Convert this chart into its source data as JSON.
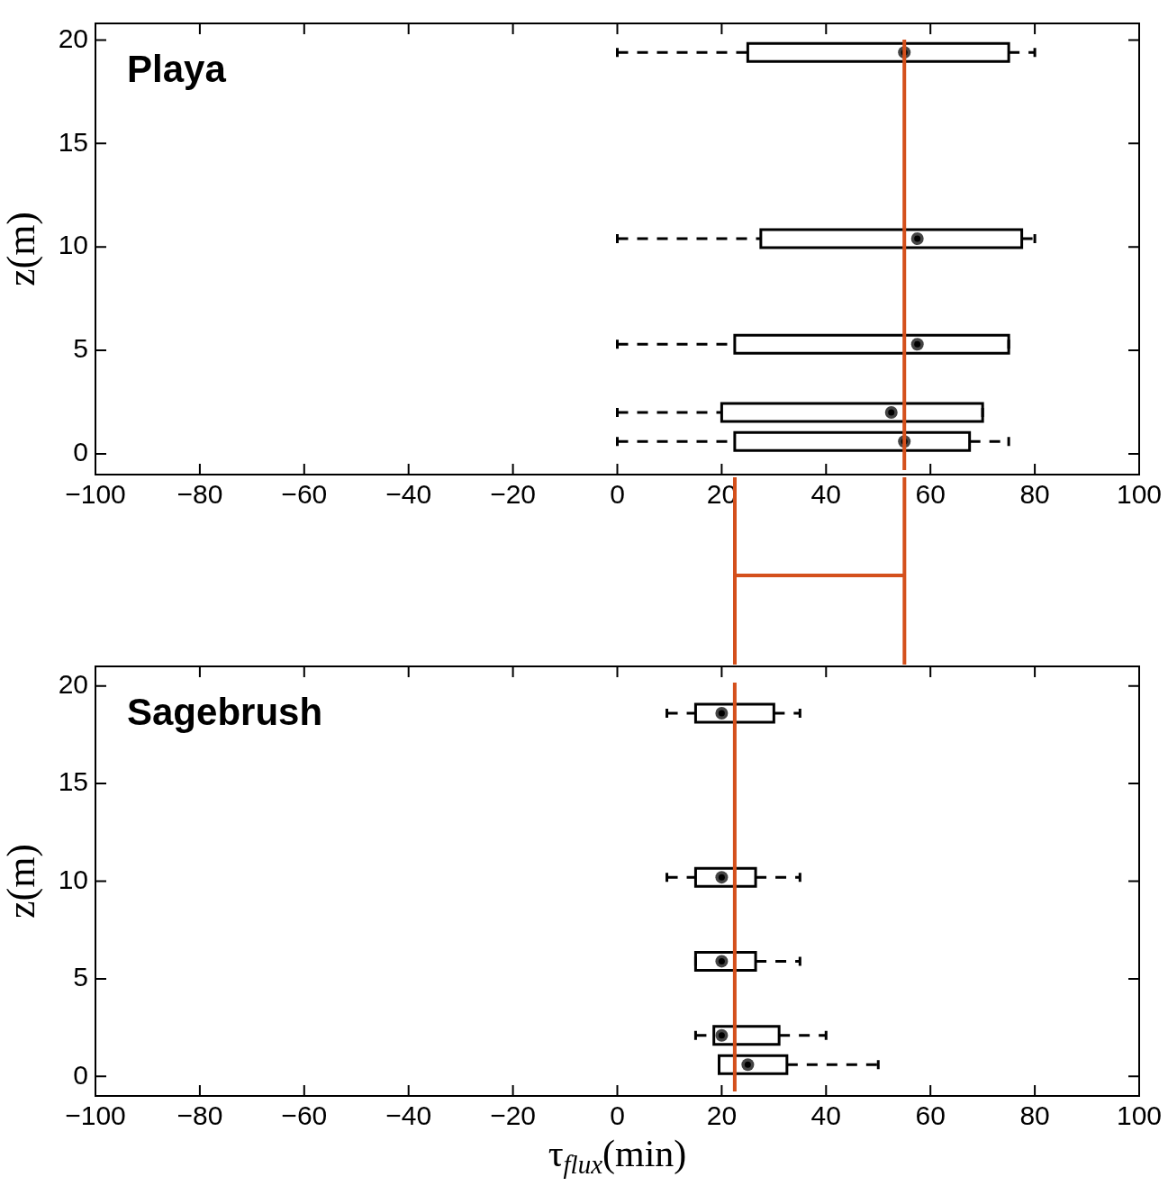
{
  "chart_data": [
    {
      "type": "box",
      "orientation": "horizontal",
      "annotations": [
        "Playa"
      ],
      "ylabel": "z(m)",
      "x": [
        19.4,
        10.4,
        5.3,
        2,
        0.6
      ],
      "series": [
        {
          "color": "#000000",
          "boxes": [
            {
              "low": 0,
              "q1": 25,
              "median": 55,
              "q3": 75,
              "high": 80
            },
            {
              "low": 0,
              "q1": 27.5,
              "median": 57.5,
              "q3": 77.5,
              "high": 80
            },
            {
              "low": 0,
              "q1": 22.5,
              "median": 57.5,
              "q3": 75,
              "high": 75
            },
            {
              "low": 0,
              "q1": 20,
              "median": 52.5,
              "q3": 70,
              "high": 70
            },
            {
              "low": 0,
              "q1": 22.5,
              "median": 55,
              "q3": 67.5,
              "high": 75
            }
          ]
        }
      ],
      "xlim": [
        -100,
        100
      ],
      "xticks": [
        -100,
        -80,
        -60,
        -40,
        -20,
        0,
        20,
        40,
        60,
        80,
        100
      ],
      "ylim": [
        -1,
        20.8
      ],
      "yticks": [
        0,
        5,
        10,
        15,
        20
      ],
      "ref_lines": [
        {
          "axis": "x",
          "value": 55,
          "color": "#d4501c"
        }
      ]
    },
    {
      "type": "box",
      "orientation": "horizontal",
      "annotations": [
        "Sagebrush"
      ],
      "ylabel": "z(m)",
      "xlabel": "τ$_{flux}$(min)",
      "x": [
        18.6,
        10.2,
        5.9,
        2.1,
        0.6
      ],
      "series": [
        {
          "color": "#000000",
          "boxes": [
            {
              "low": 9.5,
              "q1": 15,
              "median": 20,
              "q3": 30,
              "high": 35
            },
            {
              "low": 9.5,
              "q1": 15,
              "median": 20,
              "q3": 26.5,
              "high": 35
            },
            {
              "low": 15,
              "q1": 15,
              "median": 20,
              "q3": 26.5,
              "high": 35
            },
            {
              "low": 15,
              "q1": 18.5,
              "median": 20,
              "q3": 31,
              "high": 40
            },
            {
              "low": 19.5,
              "q1": 19.5,
              "median": 25,
              "q3": 32.5,
              "high": 50
            }
          ]
        }
      ],
      "xlim": [
        -100,
        100
      ],
      "xticks": [
        -100,
        -80,
        -60,
        -40,
        -20,
        0,
        20,
        40,
        60,
        80,
        100
      ],
      "ylim": [
        -1,
        21
      ],
      "yticks": [
        0,
        5,
        10,
        15,
        20
      ],
      "ref_lines": [
        {
          "axis": "x",
          "value": 22.5,
          "color": "#d4501c"
        }
      ]
    }
  ]
}
